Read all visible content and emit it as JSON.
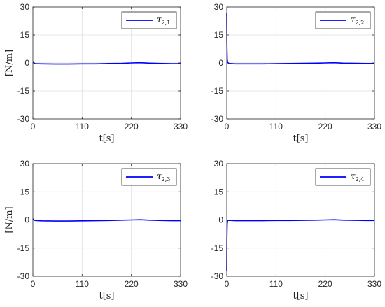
{
  "chart_data": [
    {
      "type": "line",
      "xlabel": "t[s]",
      "ylabel": "[N/m]",
      "xlim": [
        0,
        330
      ],
      "ylim": [
        -30,
        30
      ],
      "xticks": [
        0,
        110,
        220,
        330
      ],
      "yticks": [
        -30,
        -15,
        0,
        15,
        30
      ],
      "grid": true,
      "legend_position": "top-right",
      "color": "#0000ff",
      "series": [
        {
          "name": "τ2,1",
          "name_base": "τ",
          "name_sub": "2,1",
          "x": [
            0,
            2,
            5,
            20,
            50,
            80,
            110,
            140,
            170,
            200,
            220,
            240,
            260,
            290,
            310,
            330
          ],
          "values": [
            0.8,
            0.0,
            -0.4,
            -0.5,
            -0.6,
            -0.6,
            -0.5,
            -0.5,
            -0.3,
            -0.2,
            0.0,
            0.1,
            -0.1,
            -0.3,
            -0.4,
            -0.4
          ]
        }
      ]
    },
    {
      "type": "line",
      "xlabel": "t[s]",
      "ylabel": "",
      "xlim": [
        0,
        330
      ],
      "ylim": [
        -30,
        30
      ],
      "xticks": [
        0,
        110,
        220,
        330
      ],
      "yticks": [
        -30,
        -15,
        0,
        15,
        30
      ],
      "grid": true,
      "legend_position": "top-right",
      "color": "#0000ff",
      "series": [
        {
          "name": "τ2,2",
          "name_base": "τ",
          "name_sub": "2,2",
          "x": [
            0,
            0.3,
            1,
            2,
            5,
            20,
            50,
            80,
            110,
            140,
            170,
            200,
            220,
            240,
            260,
            290,
            310,
            330
          ],
          "values": [
            27,
            10,
            2,
            0.3,
            -0.3,
            -0.5,
            -0.5,
            -0.5,
            -0.4,
            -0.3,
            -0.2,
            -0.1,
            0.0,
            0.1,
            -0.1,
            -0.2,
            -0.3,
            -0.3
          ]
        }
      ]
    },
    {
      "type": "line",
      "xlabel": "t[s]",
      "ylabel": "[N/m]",
      "xlim": [
        0,
        330
      ],
      "ylim": [
        -30,
        30
      ],
      "xticks": [
        0,
        110,
        220,
        330
      ],
      "yticks": [
        -30,
        -15,
        0,
        15,
        30
      ],
      "grid": true,
      "legend_position": "top-right",
      "color": "#0000ff",
      "series": [
        {
          "name": "τ2,3",
          "name_base": "τ",
          "name_sub": "2,3",
          "x": [
            0,
            2,
            5,
            20,
            50,
            80,
            110,
            140,
            170,
            200,
            220,
            240,
            260,
            290,
            310,
            330
          ],
          "values": [
            0.6,
            0.0,
            -0.3,
            -0.5,
            -0.6,
            -0.6,
            -0.5,
            -0.4,
            -0.3,
            -0.1,
            0.0,
            0.1,
            -0.1,
            -0.3,
            -0.4,
            -0.4
          ]
        }
      ]
    },
    {
      "type": "line",
      "xlabel": "t[s]",
      "ylabel": "",
      "xlim": [
        0,
        330
      ],
      "ylim": [
        -30,
        30
      ],
      "xticks": [
        0,
        110,
        220,
        330
      ],
      "yticks": [
        -30,
        -15,
        0,
        15,
        30
      ],
      "grid": true,
      "legend_position": "top-right",
      "color": "#0000ff",
      "series": [
        {
          "name": "τ2,4",
          "name_base": "τ",
          "name_sub": "2,4",
          "x": [
            0,
            0.3,
            1,
            2,
            5,
            20,
            50,
            80,
            110,
            140,
            170,
            200,
            220,
            240,
            260,
            290,
            310,
            330
          ],
          "values": [
            -27,
            -10,
            -2,
            -0.3,
            -0.2,
            -0.4,
            -0.4,
            -0.4,
            -0.3,
            -0.3,
            -0.2,
            -0.1,
            0.0,
            0.1,
            -0.1,
            -0.2,
            -0.3,
            -0.3
          ]
        }
      ]
    }
  ]
}
